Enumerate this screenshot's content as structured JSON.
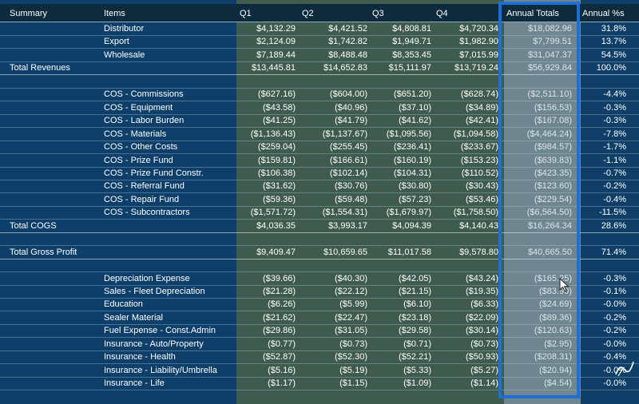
{
  "columns": [
    "Summary",
    "Items",
    "Q1",
    "Q2",
    "Q3",
    "Q4",
    "Annual Totals",
    "Annual %s"
  ],
  "rows": [
    {
      "summary": "",
      "item": "Distributor",
      "q1": "$4,132.29",
      "q2": "$4,421.52",
      "q3": "$4,808.81",
      "q4": "$4,720.34",
      "annual": "$18,082.96",
      "pct": "31.8%"
    },
    {
      "summary": "",
      "item": "Export",
      "q1": "$2,124.09",
      "q2": "$1,742.82",
      "q3": "$1,949.71",
      "q4": "$1,982.90",
      "annual": "$7,799.51",
      "pct": "13.7%"
    },
    {
      "summary": "",
      "item": "Wholesale",
      "q1": "$7,189.44",
      "q2": "$8,488.48",
      "q3": "$8,353.45",
      "q4": "$7,015.99",
      "annual": "$31,047.37",
      "pct": "54.5%"
    },
    {
      "summary": "Total Revenues",
      "item": "",
      "q1": "$13,445.81",
      "q2": "$14,652.83",
      "q3": "$15,111.97",
      "q4": "$13,719.24",
      "annual": "$56,929.84",
      "pct": "100.0%",
      "total": true
    },
    {
      "summary": "",
      "item": "",
      "q1": "",
      "q2": "",
      "q3": "",
      "q4": "",
      "annual": "",
      "pct": ""
    },
    {
      "summary": "",
      "item": "COS - Commissions",
      "q1": "($627.16)",
      "q2": "($604.00)",
      "q3": "($651.20)",
      "q4": "($628.74)",
      "annual": "($2,511.10)",
      "pct": "-4.4%"
    },
    {
      "summary": "",
      "item": "COS - Equipment",
      "q1": "($43.58)",
      "q2": "($40.96)",
      "q3": "($37.10)",
      "q4": "($34.89)",
      "annual": "($156.53)",
      "pct": "-0.3%"
    },
    {
      "summary": "",
      "item": "COS - Labor Burden",
      "q1": "($41.25)",
      "q2": "($41.79)",
      "q3": "($41.62)",
      "q4": "($42.41)",
      "annual": "($167.08)",
      "pct": "-0.3%"
    },
    {
      "summary": "",
      "item": "COS - Materials",
      "q1": "($1,136.43)",
      "q2": "($1,137.67)",
      "q3": "($1,095.56)",
      "q4": "($1,094.58)",
      "annual": "($4,464.24)",
      "pct": "-7.8%"
    },
    {
      "summary": "",
      "item": "COS - Other Costs",
      "q1": "($259.04)",
      "q2": "($255.45)",
      "q3": "($236.41)",
      "q4": "($233.67)",
      "annual": "($984.57)",
      "pct": "-1.7%"
    },
    {
      "summary": "",
      "item": "COS - Prize Fund",
      "q1": "($159.81)",
      "q2": "($166.61)",
      "q3": "($160.19)",
      "q4": "($153.23)",
      "annual": "($639.83)",
      "pct": "-1.1%"
    },
    {
      "summary": "",
      "item": "COS - Prize Fund Constr.",
      "q1": "($106.38)",
      "q2": "($102.14)",
      "q3": "($104.31)",
      "q4": "($110.52)",
      "annual": "($423.35)",
      "pct": "-0.7%"
    },
    {
      "summary": "",
      "item": "COS - Referral Fund",
      "q1": "($31.62)",
      "q2": "($30.76)",
      "q3": "($30.80)",
      "q4": "($30.43)",
      "annual": "($123.60)",
      "pct": "-0.2%"
    },
    {
      "summary": "",
      "item": "COS - Repair Fund",
      "q1": "($59.36)",
      "q2": "($59.48)",
      "q3": "($57.23)",
      "q4": "($53.46)",
      "annual": "($229.54)",
      "pct": "-0.4%"
    },
    {
      "summary": "",
      "item": "COS - Subcontractors",
      "q1": "($1,571.72)",
      "q2": "($1,554.31)",
      "q3": "($1,679.97)",
      "q4": "($1,758.50)",
      "annual": "($6,564.50)",
      "pct": "-11.5%"
    },
    {
      "summary": "Total COGS",
      "item": "",
      "q1": "$4,036.35",
      "q2": "$3,993.17",
      "q3": "$4,094.39",
      "q4": "$4,140.43",
      "annual": "$16,264.34",
      "pct": "28.6%",
      "total": true
    },
    {
      "summary": "",
      "item": "",
      "q1": "",
      "q2": "",
      "q3": "",
      "q4": "",
      "annual": "",
      "pct": ""
    },
    {
      "summary": "Total Gross Profit",
      "item": "",
      "q1": "$9,409.47",
      "q2": "$10,659.65",
      "q3": "$11,017.58",
      "q4": "$9,578.80",
      "annual": "$40,665.50",
      "pct": "71.4%",
      "total": true
    },
    {
      "summary": "",
      "item": "",
      "q1": "",
      "q2": "",
      "q3": "",
      "q4": "",
      "annual": "",
      "pct": ""
    },
    {
      "summary": "",
      "item": "Depreciation Expense",
      "q1": "($39.66)",
      "q2": "($40.30)",
      "q3": "($42.05)",
      "q4": "($43.24)",
      "annual": "($165.25)",
      "pct": "-0.3%"
    },
    {
      "summary": "",
      "item": "Sales - Fleet Depreciation",
      "q1": "($21.28)",
      "q2": "($22.12)",
      "q3": "($21.15)",
      "q4": "($19.35)",
      "annual": "($83.90)",
      "pct": "-0.1%"
    },
    {
      "summary": "",
      "item": "Education",
      "q1": "($6.26)",
      "q2": "($5.99)",
      "q3": "($6.10)",
      "q4": "($6.33)",
      "annual": "($24.69)",
      "pct": "-0.0%"
    },
    {
      "summary": "",
      "item": "Sealer Material",
      "q1": "($21.62)",
      "q2": "($22.47)",
      "q3": "($23.18)",
      "q4": "($22.09)",
      "annual": "($89.36)",
      "pct": "-0.2%"
    },
    {
      "summary": "",
      "item": "Fuel Expense - Const.Admin",
      "q1": "($29.86)",
      "q2": "($31.05)",
      "q3": "($29.58)",
      "q4": "($30.14)",
      "annual": "($120.63)",
      "pct": "-0.2%"
    },
    {
      "summary": "",
      "item": "Insurance - Auto/Property",
      "q1": "($0.77)",
      "q2": "($0.73)",
      "q3": "($0.71)",
      "q4": "($0.73)",
      "annual": "($2.95)",
      "pct": "-0.0%"
    },
    {
      "summary": "",
      "item": "Insurance - Health",
      "q1": "($52.87)",
      "q2": "($52.30)",
      "q3": "($52.21)",
      "q4": "($50.93)",
      "annual": "($208.31)",
      "pct": "-0.4%"
    },
    {
      "summary": "",
      "item": "Insurance - Liability/Umbrella",
      "q1": "($5.16)",
      "q2": "($5.19)",
      "q3": "($5.33)",
      "q4": "($5.27)",
      "annual": "($20.94)",
      "pct": "-0.0%"
    },
    {
      "summary": "",
      "item": "Insurance - Life",
      "q1": "($1.17)",
      "q2": "($1.15)",
      "q3": "($1.09)",
      "q4": "($1.14)",
      "annual": "($4.54)",
      "pct": "-0.0%"
    }
  ],
  "colors": {
    "highlight_border": "#1c6fd6",
    "header_bg": "#0d2b3c",
    "table_bg": "#0e3f6a",
    "quarter_bg": "#3f5a4f",
    "annual_bg": "#6f8590"
  },
  "icons": {
    "pointer": "mouse-pointer-icon",
    "corner": "pen-glyph-icon"
  }
}
